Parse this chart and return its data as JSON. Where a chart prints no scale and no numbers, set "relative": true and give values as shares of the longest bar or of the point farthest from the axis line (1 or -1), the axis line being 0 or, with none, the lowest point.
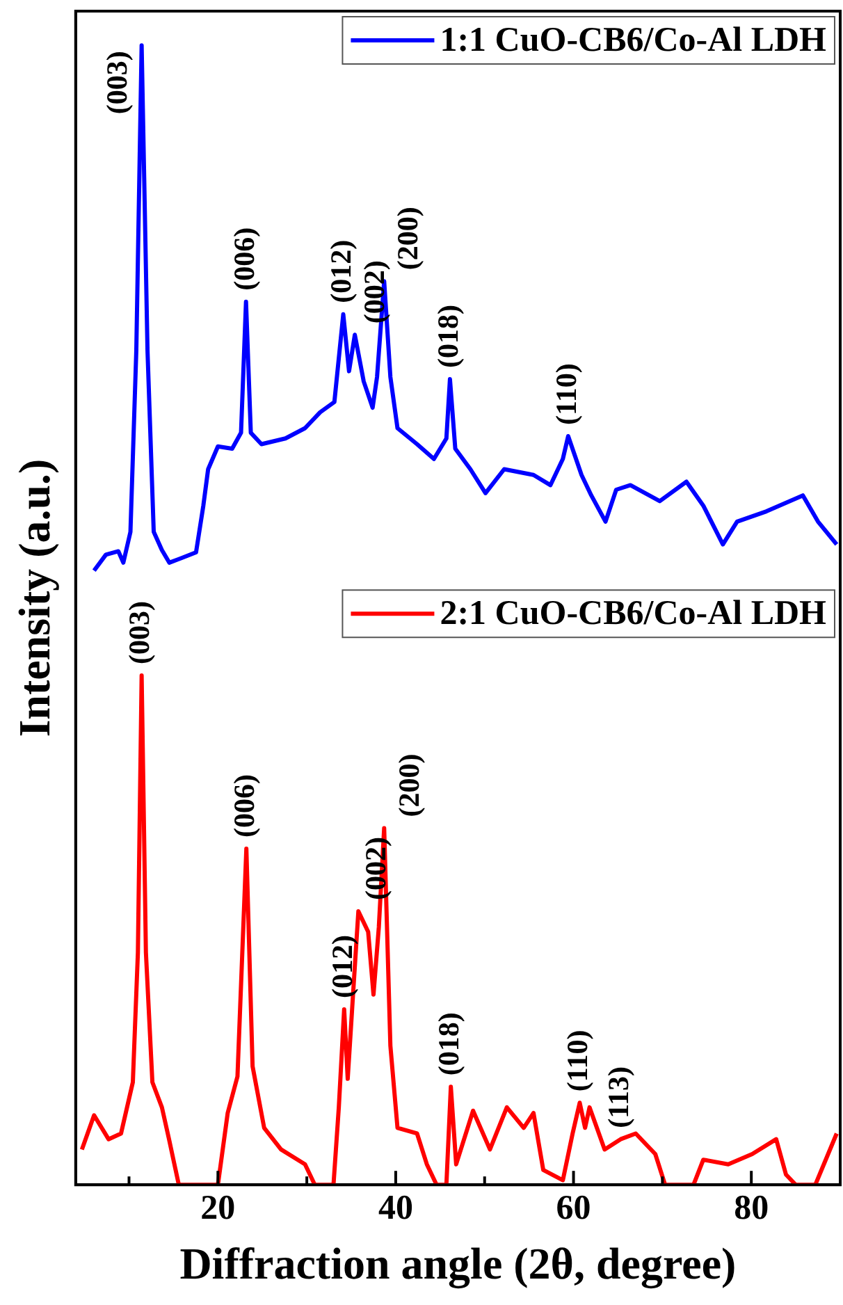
{
  "chart_data": {
    "type": "line",
    "relative": true,
    "xlabel": "Diffraction angle (2θ, degree)",
    "ylabel": "Intensity (a.u.)",
    "xlim": [
      4,
      90
    ],
    "xticks": [
      {
        "value": 10,
        "label": null
      },
      20,
      {
        "value": 30,
        "label": null
      },
      40,
      {
        "value": 50,
        "label": null
      },
      60,
      {
        "value": 70,
        "label": null
      },
      80
    ],
    "grid": false,
    "legend": "top right",
    "marker": "none",
    "line_style": "solid",
    "series": [
      {
        "name": "1:1 CuO-CB6/Co-Al LDH",
        "color": "#0000ff",
        "type": "line",
        "x": [
          6.07,
          7.4,
          8.8,
          9.36,
          10.16,
          10.82,
          11.42,
          12.08,
          12.78,
          13.7,
          14.53,
          15.9,
          17.54,
          18.36,
          18.9,
          20.0,
          21.6,
          22.6,
          23.16,
          23.7,
          24.9,
          27.6,
          29.8,
          31.5,
          33.1,
          34.1,
          34.75,
          35.4,
          36.4,
          37.4,
          37.9,
          38.7,
          39.4,
          40.2,
          42.4,
          44.3,
          45.7,
          46.1,
          46.7,
          48.4,
          50.1,
          52.2,
          55.5,
          57.4,
          58.8,
          59.4,
          60.9,
          62.0,
          63.6,
          64.8,
          66.4,
          69.7,
          72.7,
          74.6,
          76.8,
          78.4,
          81.7,
          85.8,
          87.5,
          89.6
        ],
        "values": [
          0.539,
          0.553,
          0.556,
          0.546,
          0.573,
          0.732,
          1.0,
          0.732,
          0.573,
          0.557,
          0.546,
          0.55,
          0.555,
          0.596,
          0.628,
          0.648,
          0.646,
          0.66,
          0.775,
          0.66,
          0.65,
          0.655,
          0.664,
          0.678,
          0.687,
          0.764,
          0.714,
          0.746,
          0.705,
          0.682,
          0.709,
          0.793,
          0.709,
          0.664,
          0.65,
          0.637,
          0.655,
          0.707,
          0.646,
          0.628,
          0.607,
          0.628,
          0.623,
          0.614,
          0.637,
          0.657,
          0.623,
          0.605,
          0.582,
          0.61,
          0.614,
          0.6,
          0.617,
          0.596,
          0.562,
          0.582,
          0.591,
          0.605,
          0.582,
          0.562
        ]
      },
      {
        "name": "2:1 CuO-CB6/Co-Al LDH",
        "color": "#ff0000",
        "type": "line",
        "x": [
          4.7,
          6.07,
          7.7,
          9.1,
          10.43,
          11.0,
          11.42,
          11.9,
          12.63,
          13.7,
          14.5,
          15.6,
          20.0,
          21.1,
          22.2,
          23.2,
          23.9,
          25.2,
          27.1,
          29.8,
          30.9,
          33.0,
          33.6,
          34.2,
          34.6,
          35.2,
          35.8,
          36.9,
          37.5,
          38.1,
          38.7,
          39.4,
          40.2,
          42.4,
          43.5,
          44.6,
          45.7,
          46.2,
          46.8,
          48.7,
          50.6,
          52.5,
          54.4,
          55.5,
          56.6,
          58.8,
          59.9,
          60.7,
          61.3,
          61.8,
          63.5,
          65.3,
          67.0,
          69.2,
          70.3,
          73.5,
          74.6,
          77.4,
          80.1,
          82.8,
          83.9,
          85.0,
          87.2,
          89.6
        ],
        "values": [
          0.031,
          0.061,
          0.04,
          0.045,
          0.09,
          0.204,
          0.447,
          0.204,
          0.09,
          0.068,
          0.04,
          0,
          0,
          0.063,
          0.095,
          0.295,
          0.104,
          0.05,
          0.031,
          0.018,
          0,
          0,
          0.068,
          0.154,
          0.093,
          0.167,
          0.24,
          0.222,
          0.167,
          0.226,
          0.313,
          0.122,
          0.05,
          0.045,
          0.018,
          0,
          0,
          0.086,
          0.018,
          0.065,
          0.031,
          0.068,
          0.05,
          0.063,
          0.013,
          0.004,
          0.045,
          0.072,
          0.05,
          0.068,
          0.031,
          0.04,
          0.045,
          0.027,
          0,
          0,
          0.022,
          0.018,
          0.027,
          0.04,
          0.009,
          0,
          0,
          0.045
        ]
      }
    ],
    "annotations": [
      {
        "text": "(003)",
        "x": 11.42,
        "y": 1.0
      },
      {
        "text": "(006)",
        "x": 23.16,
        "y": 0.775
      },
      {
        "text": "(012)",
        "x": 34.1,
        "y": 0.764
      },
      {
        "text": "(002)",
        "x": 35.4,
        "y": 0.746
      },
      {
        "text": "(200)",
        "x": 38.7,
        "y": 0.793
      },
      {
        "text": "(018)",
        "x": 46.1,
        "y": 0.707
      },
      {
        "text": "(110)",
        "x": 59.4,
        "y": 0.657
      },
      {
        "text": "(003)",
        "x": 11.42,
        "y": 0.447
      },
      {
        "text": "(006)",
        "x": 23.2,
        "y": 0.295
      },
      {
        "text": "(012)",
        "x": 34.2,
        "y": 0.154
      },
      {
        "text": "(002)",
        "x": 35.8,
        "y": 0.24
      },
      {
        "text": "(200)",
        "x": 38.7,
        "y": 0.313
      },
      {
        "text": "(018)",
        "x": 46.2,
        "y": 0.086
      },
      {
        "text": "(110)",
        "x": 60.7,
        "y": 0.072
      },
      {
        "text": "(113)",
        "x": 65.3,
        "y": 0.04
      }
    ]
  }
}
